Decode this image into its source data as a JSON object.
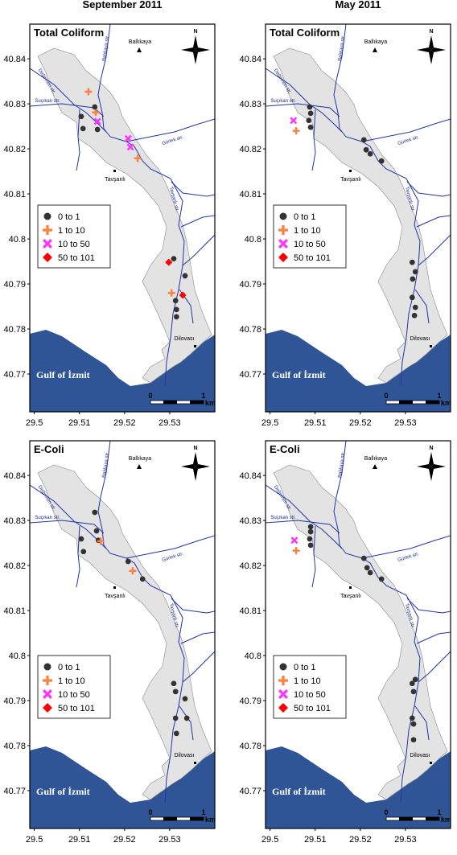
{
  "columns": [
    "September 2011",
    "May 2011"
  ],
  "map": {
    "xlim": [
      29.499,
      29.54
    ],
    "ylim": [
      40.7616,
      40.8477
    ],
    "xticks": [
      29.5,
      29.51,
      29.52,
      29.53
    ],
    "yticks": [
      40.77,
      40.78,
      40.79,
      40.8,
      40.81,
      40.82,
      40.83,
      40.84
    ],
    "places": [
      "Ballıkaya",
      "Tavşanlı",
      "Dilovası",
      "Gulf of İzmit"
    ],
    "streams": [
      "Balıkaya str.",
      "Değirmen str.",
      "Suçıkan str.",
      "Gürlek str.",
      "Tavşanlı str."
    ],
    "north": "N",
    "scale": {
      "start": "0",
      "end": "1",
      "unit": "km"
    },
    "legend": [
      {
        "label": "0 to 1",
        "marker": "circle",
        "color": "#333333"
      },
      {
        "label": "1 to 10",
        "marker": "cross",
        "color": "#ff7f3f"
      },
      {
        "label": "10 to 50",
        "marker": "x",
        "color": "#ff33ff"
      },
      {
        "label": "50 to 101",
        "marker": "diamond",
        "color": "#ff0000"
      }
    ]
  },
  "panels": [
    {
      "title": "Total Coliform",
      "column": 0,
      "points": [
        {
          "lon": 29.512,
          "lat": 40.8327,
          "class": 1
        },
        {
          "lon": 29.5136,
          "lat": 40.8281,
          "class": 1
        },
        {
          "lon": 29.514,
          "lat": 40.8261,
          "class": 2
        },
        {
          "lon": 29.5134,
          "lat": 40.8293,
          "class": 0
        },
        {
          "lon": 29.5104,
          "lat": 40.8272,
          "class": 0
        },
        {
          "lon": 29.5108,
          "lat": 40.8245,
          "class": 0
        },
        {
          "lon": 29.514,
          "lat": 40.8243,
          "class": 0
        },
        {
          "lon": 29.5208,
          "lat": 40.8223,
          "class": 2
        },
        {
          "lon": 29.5213,
          "lat": 40.8204,
          "class": 2
        },
        {
          "lon": 29.5229,
          "lat": 40.8179,
          "class": 1
        },
        {
          "lon": 29.5298,
          "lat": 40.7948,
          "class": 3
        },
        {
          "lon": 29.5329,
          "lat": 40.7875,
          "class": 3
        },
        {
          "lon": 29.5304,
          "lat": 40.788,
          "class": 1
        },
        {
          "lon": 29.5309,
          "lat": 40.7956,
          "class": 0
        },
        {
          "lon": 29.5334,
          "lat": 40.7918,
          "class": 0
        },
        {
          "lon": 29.5313,
          "lat": 40.7863,
          "class": 0
        },
        {
          "lon": 29.5315,
          "lat": 40.7843,
          "class": 0
        },
        {
          "lon": 29.5315,
          "lat": 40.7827,
          "class": 0
        }
      ]
    },
    {
      "title": "Total Coliform",
      "column": 1,
      "points": [
        {
          "lon": 29.5052,
          "lat": 40.8263,
          "class": 2
        },
        {
          "lon": 29.5058,
          "lat": 40.824,
          "class": 1
        },
        {
          "lon": 29.5088,
          "lat": 40.8293,
          "class": 0
        },
        {
          "lon": 29.509,
          "lat": 40.8279,
          "class": 0
        },
        {
          "lon": 29.5086,
          "lat": 40.8263,
          "class": 0
        },
        {
          "lon": 29.509,
          "lat": 40.8248,
          "class": 0
        },
        {
          "lon": 29.5208,
          "lat": 40.822,
          "class": 0
        },
        {
          "lon": 29.5213,
          "lat": 40.8198,
          "class": 0
        },
        {
          "lon": 29.5222,
          "lat": 40.8189,
          "class": 0
        },
        {
          "lon": 29.5247,
          "lat": 40.8173,
          "class": 0
        },
        {
          "lon": 29.5315,
          "lat": 40.7948,
          "class": 0
        },
        {
          "lon": 29.5322,
          "lat": 40.7927,
          "class": 0
        },
        {
          "lon": 29.5316,
          "lat": 40.7911,
          "class": 0
        },
        {
          "lon": 29.5315,
          "lat": 40.787,
          "class": 0
        },
        {
          "lon": 29.5322,
          "lat": 40.7848,
          "class": 0
        },
        {
          "lon": 29.532,
          "lat": 40.783,
          "class": 0
        }
      ]
    },
    {
      "title": "E-Coli",
      "column": 0,
      "points": [
        {
          "lon": 29.5104,
          "lat": 40.8259,
          "class": 0
        },
        {
          "lon": 29.5109,
          "lat": 40.8231,
          "class": 0
        },
        {
          "lon": 29.5134,
          "lat": 40.8318,
          "class": 0
        },
        {
          "lon": 29.5138,
          "lat": 40.8277,
          "class": 0
        },
        {
          "lon": 29.5142,
          "lat": 40.8256,
          "class": 0
        },
        {
          "lon": 29.5147,
          "lat": 40.8254,
          "class": 1
        },
        {
          "lon": 29.5208,
          "lat": 40.8209,
          "class": 0
        },
        {
          "lon": 29.5218,
          "lat": 40.8188,
          "class": 1
        },
        {
          "lon": 29.524,
          "lat": 40.817,
          "class": 0
        },
        {
          "lon": 29.5309,
          "lat": 40.7938,
          "class": 0
        },
        {
          "lon": 29.5313,
          "lat": 40.792,
          "class": 0
        },
        {
          "lon": 29.5334,
          "lat": 40.7904,
          "class": 0
        },
        {
          "lon": 29.5313,
          "lat": 40.7861,
          "class": 0
        },
        {
          "lon": 29.5338,
          "lat": 40.7861,
          "class": 0
        },
        {
          "lon": 29.5315,
          "lat": 40.7827,
          "class": 0
        }
      ]
    },
    {
      "title": "E-Coli",
      "column": 1,
      "points": [
        {
          "lon": 29.5054,
          "lat": 40.8256,
          "class": 2
        },
        {
          "lon": 29.5058,
          "lat": 40.8233,
          "class": 1
        },
        {
          "lon": 29.509,
          "lat": 40.8286,
          "class": 0
        },
        {
          "lon": 29.509,
          "lat": 40.8275,
          "class": 0
        },
        {
          "lon": 29.5088,
          "lat": 40.8259,
          "class": 0
        },
        {
          "lon": 29.509,
          "lat": 40.8245,
          "class": 0
        },
        {
          "lon": 29.5208,
          "lat": 40.8216,
          "class": 0
        },
        {
          "lon": 29.5215,
          "lat": 40.8195,
          "class": 0
        },
        {
          "lon": 29.5222,
          "lat": 40.8184,
          "class": 0
        },
        {
          "lon": 29.5247,
          "lat": 40.817,
          "class": 0
        },
        {
          "lon": 29.5322,
          "lat": 40.7947,
          "class": 0
        },
        {
          "lon": 29.5315,
          "lat": 40.7938,
          "class": 0
        },
        {
          "lon": 29.5318,
          "lat": 40.792,
          "class": 0
        },
        {
          "lon": 29.5315,
          "lat": 40.7861,
          "class": 0
        },
        {
          "lon": 29.5318,
          "lat": 40.7848,
          "class": 0
        },
        {
          "lon": 29.5318,
          "lat": 40.7813,
          "class": 0
        }
      ]
    }
  ]
}
